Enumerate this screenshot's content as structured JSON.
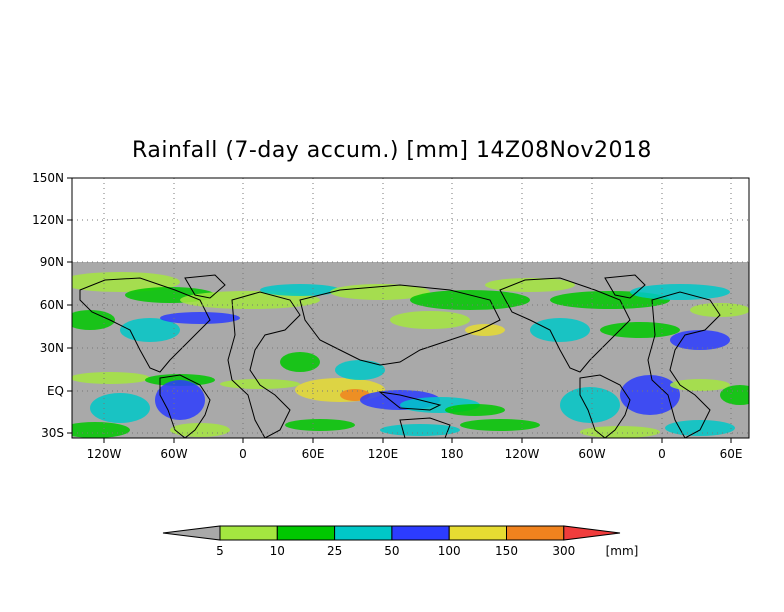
{
  "title": "Rainfall (7-day accum.) [mm] 14Z08Nov2018",
  "map": {
    "lat_labels": [
      "150N",
      "120N",
      "90N",
      "60N",
      "30N",
      "EQ",
      "30S"
    ],
    "lon_labels": [
      "120W",
      "60W",
      "0",
      "60E",
      "120E",
      "180",
      "120W",
      "60W",
      "0",
      "60E"
    ],
    "no_data_color": "#a9a9a9",
    "border_color": "#000000",
    "grid": "dotted"
  },
  "colorbar": {
    "unit": "[mm]",
    "thresholds": [
      "5",
      "10",
      "25",
      "50",
      "100",
      "150",
      "300"
    ],
    "colors": [
      "#a9a9a9",
      "#a4e640",
      "#00c800",
      "#00c8c8",
      "#2c3cff",
      "#e6dc32",
      "#f0821e",
      "#f03c3c"
    ]
  }
}
